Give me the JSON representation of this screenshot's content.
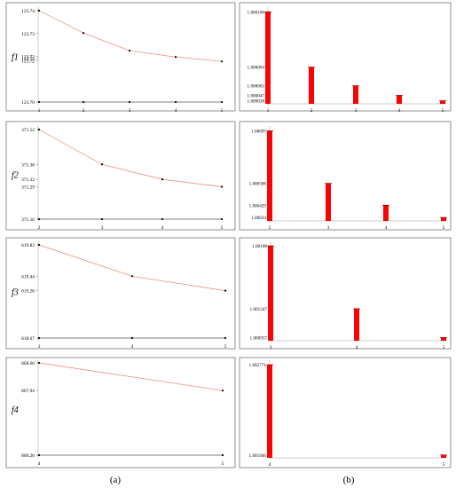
{
  "figure": {
    "caption_a": "(a)",
    "caption_b": "(b)"
  },
  "colors": {
    "line": "#f08070",
    "bar": "#ff0000",
    "bar_error": "#b00000",
    "baseline": "#000000",
    "frame": "#777777"
  },
  "chart_data": [
    {
      "id": "a1",
      "panel": "a",
      "type": "line",
      "ylabel": "f1",
      "x": [
        1,
        2,
        3,
        4,
        5
      ],
      "x_ticks": [
        "1",
        "2",
        "3",
        "4",
        "5"
      ],
      "y_ticks": [
        {
          "value": 123.74,
          "label": "123.74"
        },
        {
          "value": 123.73,
          "label": "123.73"
        },
        {
          "value": 123.72,
          "label": "123.72"
        },
        {
          "value": 123.719,
          "label": "123.72"
        },
        {
          "value": 123.718,
          "label": "123.72"
        },
        {
          "value": 123.7,
          "label": "123.70"
        }
      ],
      "ylim": [
        123.7,
        123.74
      ],
      "series": [
        {
          "values": [
            123.74,
            123.7302,
            123.7225,
            123.7197,
            123.7178
          ]
        },
        {
          "values": [
            123.7,
            123.7,
            123.7,
            123.7,
            123.7
          ]
        }
      ]
    },
    {
      "id": "a2",
      "panel": "a",
      "type": "line",
      "ylabel": "f2",
      "x": [
        2,
        3,
        4,
        5
      ],
      "x_ticks": [
        "2",
        "3",
        "4",
        "5"
      ],
      "y_ticks": [
        {
          "value": 371.52,
          "label": "371.52"
        },
        {
          "value": 371.38,
          "label": "371.38"
        },
        {
          "value": 371.32,
          "label": "371.32"
        },
        {
          "value": 371.29,
          "label": "371.29"
        },
        {
          "value": 371.16,
          "label": "371.16"
        }
      ],
      "ylim": [
        371.16,
        371.52
      ],
      "series": [
        {
          "values": [
            371.52,
            371.38,
            371.32,
            371.29
          ]
        },
        {
          "values": [
            371.16,
            371.16,
            371.16,
            371.16
          ]
        }
      ]
    },
    {
      "id": "a3",
      "panel": "a",
      "type": "line",
      "ylabel": "f3",
      "x": [
        3,
        4,
        5
      ],
      "x_ticks": [
        "3",
        "4",
        "5"
      ],
      "y_ticks": [
        {
          "value": 619.83,
          "label": "619.83"
        },
        {
          "value": 619.44,
          "label": "619.44"
        },
        {
          "value": 619.26,
          "label": "619.26"
        },
        {
          "value": 618.67,
          "label": "618.67"
        }
      ],
      "ylim": [
        618.67,
        619.83
      ],
      "series": [
        {
          "values": [
            619.83,
            619.44,
            619.26
          ]
        },
        {
          "values": [
            618.67,
            618.67,
            618.67
          ]
        }
      ]
    },
    {
      "id": "a4",
      "panel": "a",
      "type": "line",
      "ylabel": "f4",
      "x": [
        4,
        5
      ],
      "x_ticks": [
        "4",
        "5"
      ],
      "y_ticks": [
        {
          "value": 868.66,
          "label": "868.66"
        },
        {
          "value": 867.94,
          "label": "867.94"
        },
        {
          "value": 866.26,
          "label": "866.26"
        }
      ],
      "ylim": [
        866.26,
        868.66
      ],
      "series": [
        {
          "values": [
            868.66,
            867.94
          ]
        },
        {
          "values": [
            866.26,
            866.26
          ]
        }
      ]
    },
    {
      "id": "b1",
      "panel": "b",
      "type": "bar",
      "categories": [
        "1",
        "2",
        "3",
        "4",
        "5"
      ],
      "values": [
        1.000186,
        1.000094,
        1.000063,
        1.000047,
        1.000038
      ],
      "y_ticks": [
        {
          "value": 1.000186,
          "label": "1.000186"
        },
        {
          "value": 1.000094,
          "label": "1.000094"
        },
        {
          "value": 1.000063,
          "label": "1.000063"
        },
        {
          "value": 1.000047,
          "label": "1.000047"
        },
        {
          "value": 1.000038,
          "label": "1.000038"
        }
      ],
      "ylim": [
        1.000033,
        1.000188
      ]
    },
    {
      "id": "b2",
      "panel": "b",
      "type": "bar",
      "categories": [
        "2",
        "3",
        "4",
        "5"
      ],
      "values": [
        1.00097,
        1.000588,
        1.000429,
        1.00034
      ],
      "y_ticks": [
        {
          "value": 1.00097,
          "label": "1.00097"
        },
        {
          "value": 1.000588,
          "label": "1.000588"
        },
        {
          "value": 1.000429,
          "label": "1.000429"
        },
        {
          "value": 1.00034,
          "label": "1.00034"
        }
      ],
      "ylim": [
        1.000315,
        1.00098
      ]
    },
    {
      "id": "b3",
      "panel": "b",
      "type": "bar",
      "categories": [
        "3",
        "4",
        "5"
      ],
      "values": [
        1.00188,
        1.001247,
        1.000957
      ],
      "y_ticks": [
        {
          "value": 1.00188,
          "label": "1.00188"
        },
        {
          "value": 1.001247,
          "label": "1.001247"
        },
        {
          "value": 1.000957,
          "label": "1.000957"
        }
      ],
      "ylim": [
        1.000925,
        1.00189
      ]
    },
    {
      "id": "b4",
      "panel": "b",
      "type": "bar",
      "categories": [
        "4",
        "5"
      ],
      "values": [
        1.002771,
        1.001946
      ],
      "y_ticks": [
        {
          "value": 1.002771,
          "label": "1.002771"
        },
        {
          "value": 1.001946,
          "label": "1.001946"
        }
      ],
      "ylim": [
        1.00192,
        1.00278
      ]
    }
  ]
}
